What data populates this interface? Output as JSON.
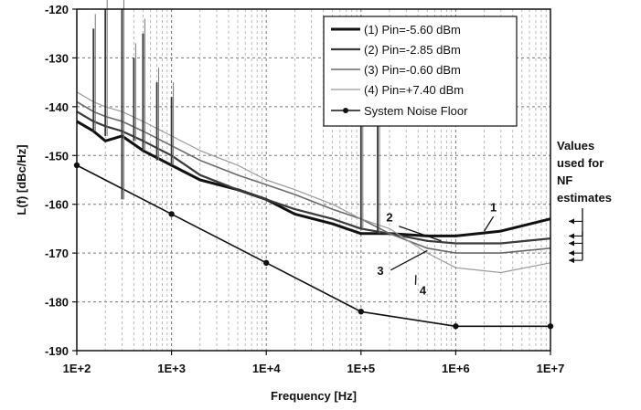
{
  "chart_data": {
    "type": "line",
    "x_scale": "log",
    "xlabel": "Frequency [Hz]",
    "ylabel": "L(f) [dBc/Hz]",
    "xlim": [
      100,
      10000000
    ],
    "ylim": [
      -190,
      -120
    ],
    "x_ticks": [
      "1E+2",
      "1E+3",
      "1E+4",
      "1E+5",
      "1E+6",
      "1E+7"
    ],
    "y_ticks": [
      "-120",
      "-130",
      "-140",
      "-150",
      "-160",
      "-170",
      "-180",
      "-190"
    ],
    "grid": true,
    "legend_position": "top-right",
    "series": [
      {
        "name": "(1) Pin=-5.60 dBm",
        "color": "#111111",
        "points": [
          [
            100,
            -143
          ],
          [
            150,
            -145
          ],
          [
            200,
            -147
          ],
          [
            300,
            -146
          ],
          [
            500,
            -149
          ],
          [
            1000,
            -152
          ],
          [
            2000,
            -155
          ],
          [
            5000,
            -157
          ],
          [
            10000,
            -159
          ],
          [
            20000,
            -162
          ],
          [
            50000,
            -164
          ],
          [
            100000,
            -166
          ],
          [
            200000,
            -166
          ],
          [
            500000,
            -166.5
          ],
          [
            1000000,
            -166.5
          ],
          [
            3000000,
            -165.5
          ],
          [
            10000000,
            -163
          ]
        ]
      },
      {
        "name": "(2) Pin=-2.85 dBm",
        "color": "#3a3a3a",
        "points": [
          [
            100,
            -141
          ],
          [
            150,
            -143
          ],
          [
            200,
            -144
          ],
          [
            300,
            -145
          ],
          [
            500,
            -147
          ],
          [
            1000,
            -150
          ],
          [
            2000,
            -154
          ],
          [
            5000,
            -157
          ],
          [
            10000,
            -159
          ],
          [
            20000,
            -161
          ],
          [
            50000,
            -163
          ],
          [
            100000,
            -165
          ],
          [
            200000,
            -166
          ],
          [
            500000,
            -167.5
          ],
          [
            1000000,
            -168
          ],
          [
            3000000,
            -168
          ],
          [
            10000000,
            -167
          ]
        ]
      },
      {
        "name": "(3) Pin=-0.60 dBm",
        "color": "#6a6a6a",
        "points": [
          [
            100,
            -139
          ],
          [
            150,
            -141
          ],
          [
            200,
            -142
          ],
          [
            300,
            -143
          ],
          [
            500,
            -145
          ],
          [
            1000,
            -148
          ],
          [
            2000,
            -151
          ],
          [
            5000,
            -154
          ],
          [
            10000,
            -156
          ],
          [
            20000,
            -158
          ],
          [
            50000,
            -161
          ],
          [
            100000,
            -163
          ],
          [
            200000,
            -166
          ],
          [
            500000,
            -169
          ],
          [
            1000000,
            -170
          ],
          [
            3000000,
            -170
          ],
          [
            10000000,
            -169
          ]
        ]
      },
      {
        "name": "(4) Pin=+7.40 dBm",
        "color": "#9a9a9a",
        "points": [
          [
            100,
            -137
          ],
          [
            150,
            -139
          ],
          [
            200,
            -140
          ],
          [
            300,
            -141
          ],
          [
            500,
            -143
          ],
          [
            1000,
            -146
          ],
          [
            2000,
            -149
          ],
          [
            5000,
            -152
          ],
          [
            10000,
            -155
          ],
          [
            20000,
            -157
          ],
          [
            50000,
            -160
          ],
          [
            100000,
            -163
          ],
          [
            200000,
            -165
          ],
          [
            500000,
            -170
          ],
          [
            1000000,
            -173
          ],
          [
            3000000,
            -174
          ],
          [
            10000000,
            -172
          ]
        ]
      },
      {
        "name": "System Noise Floor",
        "color": "#111111",
        "marker": "circle",
        "points": [
          [
            100,
            -152
          ],
          [
            1000,
            -162
          ],
          [
            10000,
            -172
          ],
          [
            100000,
            -182
          ],
          [
            1000000,
            -185
          ],
          [
            10000000,
            -185
          ]
        ]
      }
    ],
    "spurs": [
      {
        "x": 150,
        "top": -124,
        "bottom": -145
      },
      {
        "x": 200,
        "top": -120,
        "bottom": -146
      },
      {
        "x": 300,
        "top": -120,
        "bottom": -159
      },
      {
        "x": 400,
        "top": -130,
        "bottom": -147
      },
      {
        "x": 500,
        "top": -125,
        "bottom": -149
      },
      {
        "x": 700,
        "top": -135,
        "bottom": -151
      },
      {
        "x": 1000,
        "top": -138,
        "bottom": -152
      },
      {
        "x": 100000,
        "top": -136,
        "bottom": -165
      },
      {
        "x": 150000,
        "top": -136,
        "bottom": -166
      }
    ],
    "annotations": [
      {
        "text": "1",
        "x": 2500000,
        "y": -161.5
      },
      {
        "text": "2",
        "x": 200000,
        "y": -163.5
      },
      {
        "text": "3",
        "x": 160000,
        "y": -174.5
      },
      {
        "text": "4",
        "x": 450000,
        "y": -178.5
      }
    ],
    "side_note": [
      "Values",
      "used for",
      "NF",
      "estimates"
    ]
  }
}
